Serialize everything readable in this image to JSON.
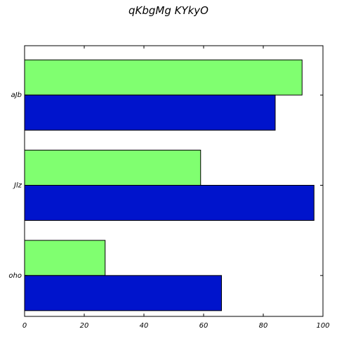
{
  "chart_data": {
    "type": "bar",
    "orientation": "horizontal",
    "title": "qKbgMg KYkyO",
    "xlabel": "",
    "ylabel": "",
    "categories": [
      "aJb",
      "Jlz",
      "oho"
    ],
    "xlim": [
      0,
      100
    ],
    "x_ticks": [
      0,
      20,
      40,
      60,
      80,
      100
    ],
    "grid": false,
    "series": [
      {
        "values": [
          93,
          59,
          27
        ],
        "color": "#80ff70"
      },
      {
        "values": [
          84,
          97,
          66
        ],
        "color": "#0014cc"
      }
    ]
  }
}
